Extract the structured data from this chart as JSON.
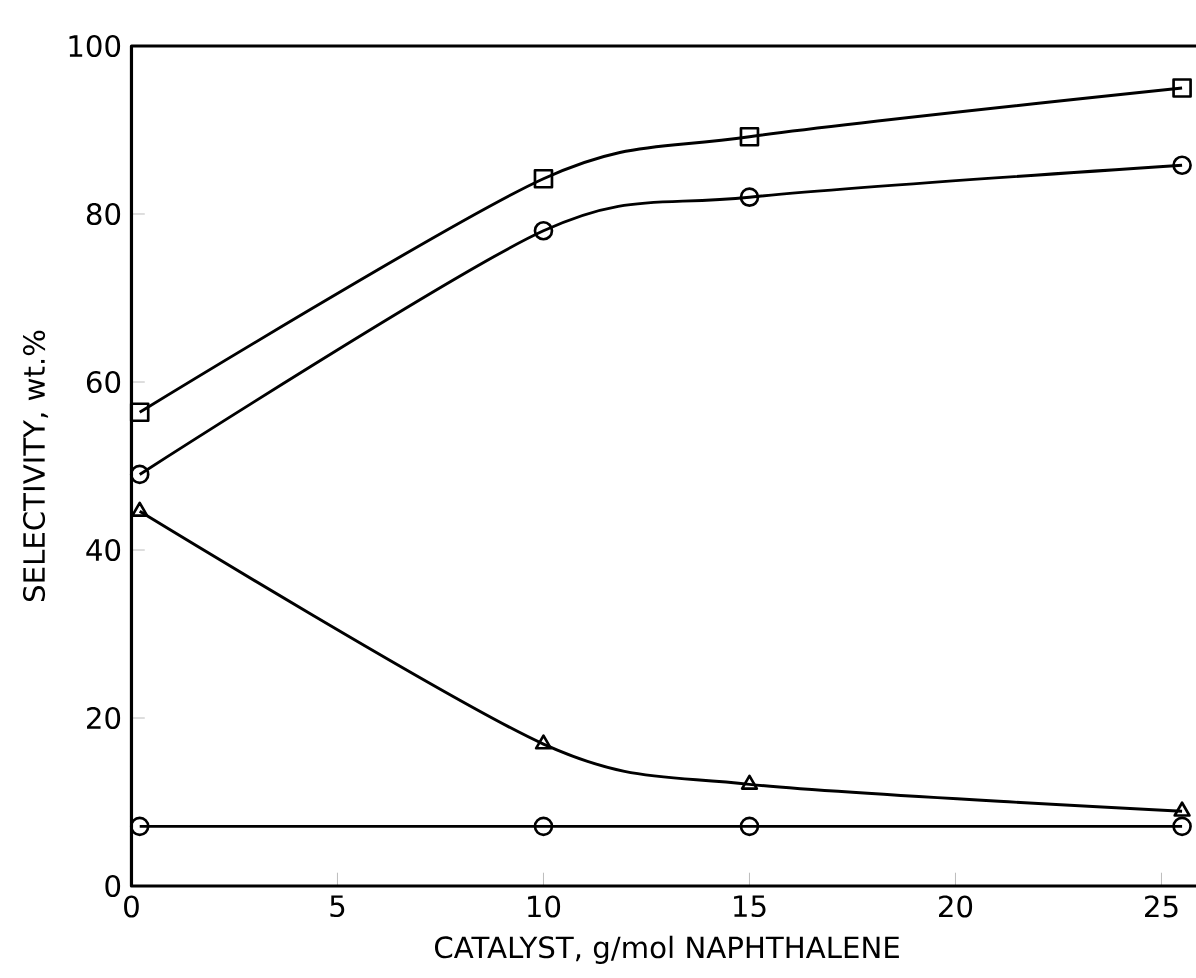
{
  "chart_data": {
    "type": "line",
    "xlabel": "CATALYST, g/mol NAPHTHALENE",
    "ylabel": "SELECTIVITY, wt.%",
    "xlim": [
      0,
      26
    ],
    "ylim": [
      0,
      100
    ],
    "xticks": [
      0,
      5,
      10,
      15,
      20,
      25
    ],
    "yticks": [
      0,
      20,
      40,
      60,
      80,
      100
    ],
    "grid": false,
    "line_style": "solid",
    "series": [
      {
        "color": "#000000",
        "marker": "square",
        "x": [
          0.2,
          10,
          15,
          25.5
        ],
        "values": [
          56.4,
          84.2,
          89.2,
          95
        ]
      },
      {
        "color": "#000000",
        "marker": "circle",
        "x": [
          0.2,
          10,
          15,
          25.5
        ],
        "values": [
          49,
          78,
          82,
          85.8
        ]
      },
      {
        "color": "#000000",
        "marker": "triangle",
        "x": [
          0.2,
          10,
          15,
          25.5
        ],
        "values": [
          44.6,
          16.9,
          12.1,
          8.9
        ]
      },
      {
        "color": "#000000",
        "marker": "circle",
        "x": [
          0.2,
          10,
          15,
          25.5
        ],
        "values": [
          7.1,
          7.1,
          7.1,
          7.1
        ]
      }
    ]
  }
}
